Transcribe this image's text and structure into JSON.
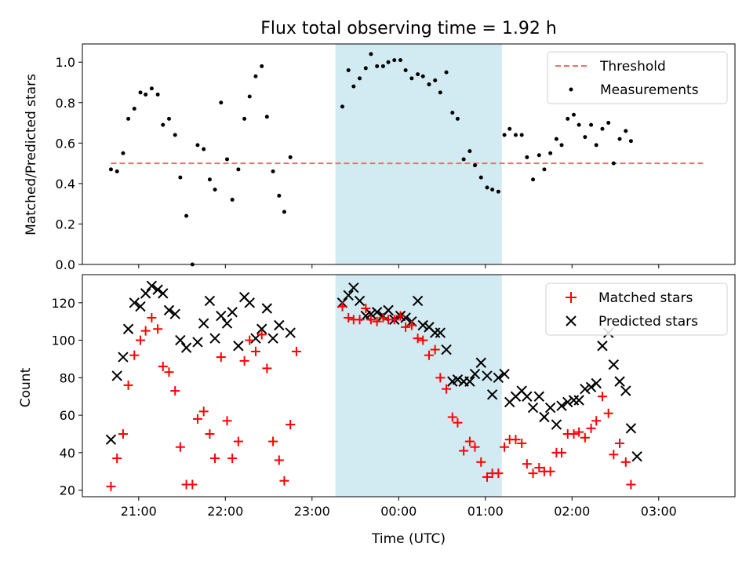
{
  "chart_data": {
    "type": "scatter",
    "title": "Flux total observing time = 1.92 h",
    "xlabel": "Time (UTC)",
    "x_tick_labels": [
      "21:00",
      "22:00",
      "23:00",
      "00:00",
      "01:00",
      "02:00",
      "03:00"
    ],
    "x_tick_hours": [
      21,
      22,
      23,
      24,
      25,
      26,
      27
    ],
    "xlim": [
      20.35,
      27.88
    ],
    "highlight_span": {
      "start": 23.27,
      "end": 25.19,
      "color": "#add8e6"
    },
    "top": {
      "ylabel": "Matched/Predicted stars",
      "ylim": [
        0.0,
        1.09
      ],
      "yticks": [
        0.0,
        0.2,
        0.4,
        0.6,
        0.8,
        1.0
      ],
      "ytick_labels": [
        "0.0",
        "0.2",
        "0.4",
        "0.6",
        "0.8",
        "1.0"
      ],
      "legend_position": "top-right",
      "threshold": {
        "name": "Threshold",
        "value": 0.5,
        "x_range": [
          20.68,
          27.55
        ],
        "color": "#ff6b6b"
      },
      "series": [
        {
          "name": "Measurements",
          "color": "#000000",
          "points": [
            [
              20.68,
              0.47
            ],
            [
              20.75,
              0.46
            ],
            [
              20.82,
              0.55
            ],
            [
              20.88,
              0.72
            ],
            [
              20.95,
              0.77
            ],
            [
              21.02,
              0.85
            ],
            [
              21.08,
              0.84
            ],
            [
              21.15,
              0.87
            ],
            [
              21.22,
              0.84
            ],
            [
              21.28,
              0.69
            ],
            [
              21.35,
              0.72
            ],
            [
              21.42,
              0.64
            ],
            [
              21.48,
              0.43
            ],
            [
              21.55,
              0.24
            ],
            [
              21.62,
              0.0
            ],
            [
              21.68,
              0.59
            ],
            [
              21.75,
              0.57
            ],
            [
              21.82,
              0.42
            ],
            [
              21.88,
              0.37
            ],
            [
              21.95,
              0.8
            ],
            [
              22.02,
              0.52
            ],
            [
              22.08,
              0.32
            ],
            [
              22.15,
              0.47
            ],
            [
              22.22,
              0.72
            ],
            [
              22.28,
              0.83
            ],
            [
              22.35,
              0.93
            ],
            [
              22.42,
              0.98
            ],
            [
              22.48,
              0.73
            ],
            [
              22.55,
              0.46
            ],
            [
              22.62,
              0.34
            ],
            [
              22.68,
              0.26
            ],
            [
              22.75,
              0.53
            ],
            [
              23.35,
              0.78
            ],
            [
              23.42,
              0.96
            ],
            [
              23.48,
              0.88
            ],
            [
              23.55,
              0.92
            ],
            [
              23.62,
              0.97
            ],
            [
              23.68,
              1.04
            ],
            [
              23.75,
              0.98
            ],
            [
              23.82,
              0.98
            ],
            [
              23.88,
              1.0
            ],
            [
              23.95,
              1.01
            ],
            [
              24.02,
              1.01
            ],
            [
              24.08,
              0.96
            ],
            [
              24.15,
              0.92
            ],
            [
              24.22,
              0.94
            ],
            [
              24.28,
              0.93
            ],
            [
              24.35,
              0.89
            ],
            [
              24.42,
              0.91
            ],
            [
              24.48,
              0.85
            ],
            [
              24.55,
              0.95
            ],
            [
              24.62,
              0.75
            ],
            [
              24.68,
              0.72
            ],
            [
              24.75,
              0.52
            ],
            [
              24.82,
              0.56
            ],
            [
              24.88,
              0.49
            ],
            [
              24.95,
              0.43
            ],
            [
              25.02,
              0.38
            ],
            [
              25.08,
              0.37
            ],
            [
              25.15,
              0.36
            ],
            [
              25.22,
              0.64
            ],
            [
              25.28,
              0.67
            ],
            [
              25.35,
              0.64
            ],
            [
              25.42,
              0.64
            ],
            [
              25.48,
              0.53
            ],
            [
              25.55,
              0.42
            ],
            [
              25.62,
              0.54
            ],
            [
              25.68,
              0.47
            ],
            [
              25.75,
              0.55
            ],
            [
              25.82,
              0.62
            ],
            [
              25.88,
              0.59
            ],
            [
              25.95,
              0.72
            ],
            [
              26.02,
              0.74
            ],
            [
              26.08,
              0.69
            ],
            [
              26.15,
              0.63
            ],
            [
              26.22,
              0.69
            ],
            [
              26.28,
              0.59
            ],
            [
              26.35,
              0.67
            ],
            [
              26.42,
              0.7
            ],
            [
              26.48,
              0.5
            ],
            [
              26.55,
              0.62
            ],
            [
              26.62,
              0.66
            ],
            [
              26.68,
              0.61
            ]
          ]
        }
      ]
    },
    "bottom": {
      "ylabel": "Count",
      "ylim": [
        16.5,
        135
      ],
      "yticks": [
        20,
        40,
        60,
        80,
        100,
        120
      ],
      "ytick_labels": [
        "20",
        "40",
        "60",
        "80",
        "100",
        "120"
      ],
      "legend_position": "top-right",
      "series": [
        {
          "name": "Matched stars",
          "marker": "plus",
          "color": "#ff0000",
          "points": [
            [
              20.68,
              22
            ],
            [
              20.75,
              37
            ],
            [
              20.82,
              50
            ],
            [
              20.88,
              76
            ],
            [
              20.95,
              92
            ],
            [
              21.02,
              100
            ],
            [
              21.08,
              105
            ],
            [
              21.15,
              112
            ],
            [
              21.22,
              106
            ],
            [
              21.28,
              86
            ],
            [
              21.35,
              83
            ],
            [
              21.42,
              73
            ],
            [
              21.48,
              43
            ],
            [
              21.55,
              23
            ],
            [
              21.62,
              23
            ],
            [
              21.68,
              58
            ],
            [
              21.75,
              62
            ],
            [
              21.82,
              50
            ],
            [
              21.88,
              37
            ],
            [
              21.95,
              91
            ],
            [
              22.02,
              57
            ],
            [
              22.08,
              37
            ],
            [
              22.15,
              46
            ],
            [
              22.22,
              89
            ],
            [
              22.28,
              100
            ],
            [
              22.35,
              94
            ],
            [
              22.42,
              103
            ],
            [
              22.48,
              85
            ],
            [
              22.55,
              46
            ],
            [
              22.62,
              36
            ],
            [
              22.68,
              25
            ],
            [
              22.75,
              55
            ],
            [
              22.82,
              94
            ],
            [
              23.35,
              118
            ],
            [
              23.42,
              112
            ],
            [
              23.48,
              111
            ],
            [
              23.55,
              111
            ],
            [
              23.62,
              117
            ],
            [
              23.68,
              111
            ],
            [
              23.75,
              110
            ],
            [
              23.82,
              112
            ],
            [
              23.88,
              111
            ],
            [
              23.95,
              111
            ],
            [
              24.02,
              113
            ],
            [
              24.08,
              107
            ],
            [
              24.15,
              108
            ],
            [
              24.22,
              101
            ],
            [
              24.28,
              100
            ],
            [
              24.35,
              92
            ],
            [
              24.42,
              95
            ],
            [
              24.48,
              80
            ],
            [
              24.55,
              74
            ],
            [
              24.62,
              59
            ],
            [
              24.68,
              56
            ],
            [
              24.75,
              41
            ],
            [
              24.82,
              46
            ],
            [
              24.88,
              43
            ],
            [
              24.95,
              35
            ],
            [
              25.02,
              27
            ],
            [
              25.08,
              29
            ],
            [
              25.15,
              29
            ],
            [
              25.22,
              43
            ],
            [
              25.28,
              47
            ],
            [
              25.35,
              47
            ],
            [
              25.42,
              45
            ],
            [
              25.48,
              34
            ],
            [
              25.55,
              29
            ],
            [
              25.62,
              32
            ],
            [
              25.68,
              30
            ],
            [
              25.75,
              30
            ],
            [
              25.82,
              40
            ],
            [
              25.88,
              40
            ],
            [
              25.95,
              50
            ],
            [
              26.02,
              50
            ],
            [
              26.08,
              51
            ],
            [
              26.15,
              48
            ],
            [
              26.22,
              53
            ],
            [
              26.28,
              57
            ],
            [
              26.35,
              70
            ],
            [
              26.42,
              61
            ],
            [
              26.48,
              39
            ],
            [
              26.55,
              45
            ],
            [
              26.62,
              35
            ],
            [
              26.68,
              23
            ]
          ]
        },
        {
          "name": "Predicted stars",
          "marker": "x",
          "color": "#000000",
          "points": [
            [
              20.68,
              47
            ],
            [
              20.75,
              81
            ],
            [
              20.82,
              91
            ],
            [
              20.88,
              106
            ],
            [
              20.95,
              120
            ],
            [
              21.02,
              118
            ],
            [
              21.08,
              125
            ],
            [
              21.15,
              129
            ],
            [
              21.22,
              127
            ],
            [
              21.28,
              125
            ],
            [
              21.35,
              116
            ],
            [
              21.42,
              114
            ],
            [
              21.48,
              100
            ],
            [
              21.55,
              96
            ],
            [
              21.68,
              99
            ],
            [
              21.75,
              109
            ],
            [
              21.82,
              121
            ],
            [
              21.88,
              101
            ],
            [
              21.95,
              113
            ],
            [
              22.02,
              109
            ],
            [
              22.08,
              115
            ],
            [
              22.15,
              97
            ],
            [
              22.22,
              123
            ],
            [
              22.28,
              120
            ],
            [
              22.35,
              101
            ],
            [
              22.42,
              106
            ],
            [
              22.48,
              117
            ],
            [
              22.55,
              101
            ],
            [
              22.62,
              108
            ],
            [
              22.75,
              104
            ],
            [
              23.35,
              120
            ],
            [
              23.42,
              124
            ],
            [
              23.48,
              128
            ],
            [
              23.55,
              121
            ],
            [
              23.62,
              113
            ],
            [
              23.68,
              114
            ],
            [
              23.75,
              115
            ],
            [
              23.82,
              113
            ],
            [
              23.88,
              116
            ],
            [
              23.95,
              111
            ],
            [
              24.02,
              113
            ],
            [
              24.08,
              112
            ],
            [
              24.15,
              110
            ],
            [
              24.22,
              121
            ],
            [
              24.28,
              108
            ],
            [
              24.35,
              107
            ],
            [
              24.42,
              104
            ],
            [
              24.48,
              104
            ],
            [
              24.55,
              95
            ],
            [
              24.62,
              78
            ],
            [
              24.68,
              79
            ],
            [
              24.75,
              78
            ],
            [
              24.82,
              78
            ],
            [
              24.88,
              82
            ],
            [
              24.95,
              88
            ],
            [
              25.02,
              81
            ],
            [
              25.08,
              71
            ],
            [
              25.15,
              80
            ],
            [
              25.22,
              82
            ],
            [
              25.28,
              67
            ],
            [
              25.35,
              70
            ],
            [
              25.42,
              73
            ],
            [
              25.48,
              70
            ],
            [
              25.55,
              64
            ],
            [
              25.62,
              70
            ],
            [
              25.68,
              59
            ],
            [
              25.75,
              64
            ],
            [
              25.82,
              55
            ],
            [
              25.88,
              65
            ],
            [
              25.95,
              67
            ],
            [
              26.02,
              68
            ],
            [
              26.08,
              68
            ],
            [
              26.15,
              74
            ],
            [
              26.22,
              75
            ],
            [
              26.28,
              77
            ],
            [
              26.35,
              97
            ],
            [
              26.42,
              104
            ],
            [
              26.48,
              87
            ],
            [
              26.55,
              78
            ],
            [
              26.62,
              73
            ],
            [
              26.68,
              53
            ],
            [
              26.75,
              38
            ]
          ]
        }
      ]
    }
  }
}
